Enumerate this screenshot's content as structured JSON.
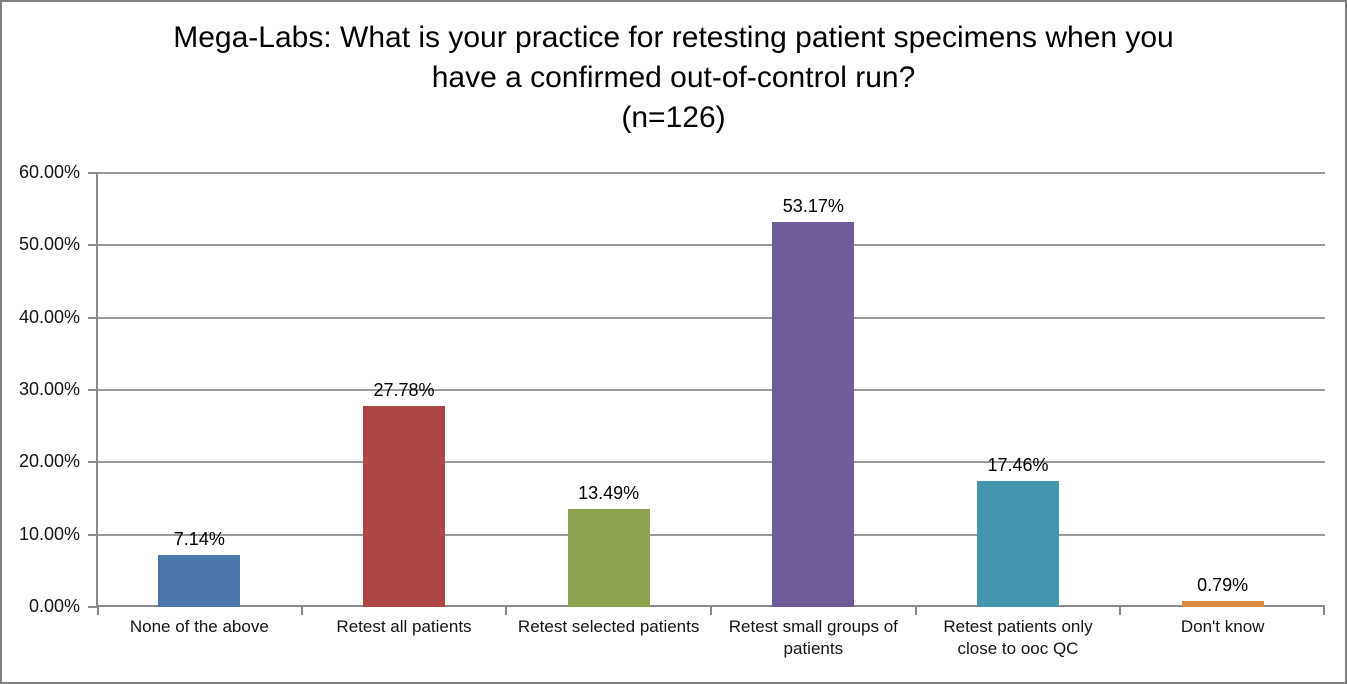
{
  "window": {
    "background": "#ffffff",
    "border_color": "#7f7f7f"
  },
  "chart_data": {
    "type": "bar",
    "title": "Mega-Labs: What is your practice for retesting patient specimens when you have a confirmed out-of-control run?",
    "subtitle": "(n=126)",
    "categories": [
      "None of the above",
      "Retest all patients",
      "Retest selected patients",
      "Retest small groups of patients",
      "Retest patients only close to ooc QC",
      "Don't know"
    ],
    "values": [
      7.14,
      27.78,
      13.49,
      53.17,
      17.46,
      0.79
    ],
    "data_labels": [
      "7.14%",
      "27.78%",
      "13.49%",
      "53.17%",
      "17.46%",
      "0.79%"
    ],
    "bar_colors": [
      "#4a76ac",
      "#ad4645",
      "#8ca350",
      "#6f5b98",
      "#4396ae",
      "#dc8c40"
    ],
    "xlabel": "",
    "ylabel": "",
    "ylim": [
      0,
      60
    ],
    "ytick_values": [
      0,
      10,
      20,
      30,
      40,
      50,
      60
    ],
    "ytick_labels": [
      "0.00%",
      "10.00%",
      "20.00%",
      "30.00%",
      "40.00%",
      "50.00%",
      "60.00%"
    ],
    "grid": true,
    "legend": false,
    "grid_color": "#9a9a9a",
    "axis_color": "#8a8a8a"
  }
}
